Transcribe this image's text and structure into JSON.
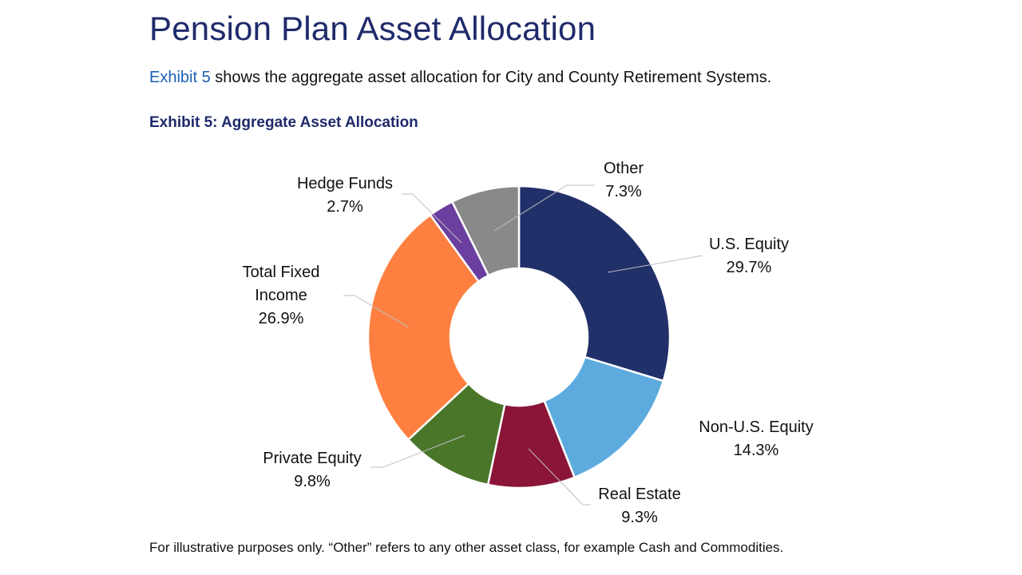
{
  "page": {
    "title": "Pension Plan Asset Allocation",
    "intro_ref": "Exhibit 5",
    "intro_text": " shows the aggregate asset allocation for City and County Retirement Systems.",
    "exhibit_title": "Exhibit 5: Aggregate Asset Allocation",
    "footnote": "For illustrative purposes only. “Other” refers to any other asset class, for example Cash and Commodities."
  },
  "chart_data": {
    "type": "pie",
    "subtype": "donut",
    "title": "Exhibit 5: Aggregate Asset Allocation",
    "start_angle_deg": 0,
    "direction": "clockwise",
    "categories": [
      "U.S. Equity",
      "Non-U.S. Equity",
      "Real Estate",
      "Private Equity",
      "Total Fixed Income",
      "Hedge Funds",
      "Other"
    ],
    "values": [
      29.7,
      14.3,
      9.3,
      9.8,
      26.9,
      2.7,
      7.3
    ],
    "colors": [
      "#203069",
      "#5dabde",
      "#8a1538",
      "#4a762a",
      "#fd8040",
      "#6b3fa0",
      "#898989"
    ],
    "value_labels": [
      "29.7%",
      "14.3%",
      "9.3%",
      "9.8%",
      "26.9%",
      "2.7%",
      "7.3%"
    ],
    "legend": "none (data labels with leader lines)"
  },
  "labels": [
    {
      "name": "U.S. Equity",
      "line1": "U.S. Equity",
      "line2": "29.7%"
    },
    {
      "name": "Non-U.S. Equity",
      "line1": "Non-U.S. Equity",
      "line2": "14.3%"
    },
    {
      "name": "Real Estate",
      "line1": "Real Estate",
      "line2": "9.3%"
    },
    {
      "name": "Private Equity",
      "line1": "Private Equity",
      "line2": "9.8%"
    },
    {
      "name": "Total Fixed Income",
      "line1": "Total Fixed",
      "line1b": "Income",
      "line2": "26.9%"
    },
    {
      "name": "Hedge Funds",
      "line1": "Hedge Funds",
      "line2": "2.7%"
    },
    {
      "name": "Other",
      "line1": "Other",
      "line2": "7.3%"
    }
  ]
}
